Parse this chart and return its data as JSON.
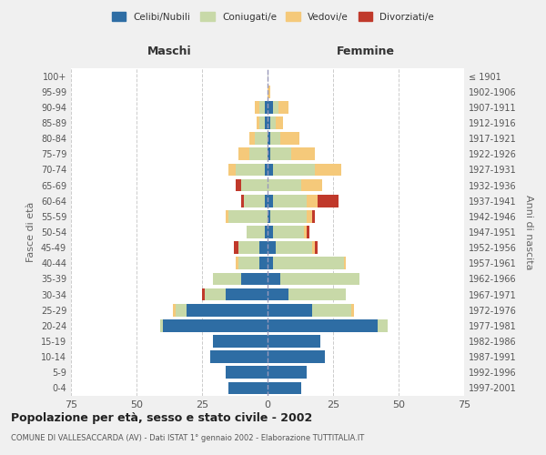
{
  "age_groups": [
    "0-4",
    "5-9",
    "10-14",
    "15-19",
    "20-24",
    "25-29",
    "30-34",
    "35-39",
    "40-44",
    "45-49",
    "50-54",
    "55-59",
    "60-64",
    "65-69",
    "70-74",
    "75-79",
    "80-84",
    "85-89",
    "90-94",
    "95-99",
    "100+"
  ],
  "birth_years": [
    "1997-2001",
    "1992-1996",
    "1987-1991",
    "1982-1986",
    "1977-1981",
    "1972-1976",
    "1967-1971",
    "1962-1966",
    "1957-1961",
    "1952-1956",
    "1947-1951",
    "1942-1946",
    "1937-1941",
    "1932-1936",
    "1927-1931",
    "1922-1926",
    "1917-1921",
    "1912-1916",
    "1907-1911",
    "1902-1906",
    "≤ 1901"
  ],
  "males_celibi": [
    15,
    16,
    22,
    21,
    40,
    31,
    16,
    10,
    3,
    3,
    1,
    0,
    1,
    0,
    1,
    0,
    0,
    1,
    1,
    0,
    0
  ],
  "males_coniugati": [
    0,
    0,
    0,
    0,
    1,
    4,
    8,
    11,
    8,
    8,
    7,
    15,
    8,
    10,
    11,
    7,
    5,
    2,
    2,
    0,
    0
  ],
  "males_vedovi": [
    0,
    0,
    0,
    0,
    0,
    1,
    0,
    0,
    1,
    0,
    0,
    1,
    0,
    0,
    3,
    4,
    2,
    1,
    2,
    0,
    0
  ],
  "males_divorziati": [
    0,
    0,
    0,
    0,
    0,
    0,
    1,
    0,
    0,
    2,
    0,
    0,
    1,
    2,
    0,
    0,
    0,
    0,
    0,
    0,
    0
  ],
  "females_celibi": [
    13,
    15,
    22,
    20,
    42,
    17,
    8,
    5,
    2,
    3,
    2,
    1,
    2,
    0,
    2,
    1,
    1,
    1,
    2,
    0,
    0
  ],
  "females_coniugati": [
    0,
    0,
    0,
    0,
    4,
    15,
    22,
    30,
    27,
    14,
    12,
    14,
    13,
    13,
    16,
    8,
    4,
    2,
    2,
    0,
    0
  ],
  "females_vedovi": [
    0,
    0,
    0,
    0,
    0,
    1,
    0,
    0,
    1,
    1,
    1,
    2,
    4,
    8,
    10,
    9,
    7,
    3,
    4,
    1,
    0
  ],
  "females_divorziati": [
    0,
    0,
    0,
    0,
    0,
    0,
    0,
    0,
    0,
    1,
    1,
    1,
    8,
    0,
    0,
    0,
    0,
    0,
    0,
    0,
    0
  ],
  "colors": {
    "celibi": "#2E6DA4",
    "coniugati": "#C8D9A8",
    "vedovi": "#F5C97A",
    "divorziati": "#C0392B"
  },
  "xlim": 75,
  "title": "Popolazione per età, sesso e stato civile - 2002",
  "subtitle": "COMUNE DI VALLESACCARDA (AV) - Dati ISTAT 1° gennaio 2002 - Elaborazione TUTTITALIA.IT",
  "xlabel_left": "Maschi",
  "xlabel_right": "Femmine",
  "ylabel_left": "Fasce di età",
  "ylabel_right": "Anni di nascita",
  "bg_color": "#f0f0f0",
  "plot_bg": "#ffffff"
}
